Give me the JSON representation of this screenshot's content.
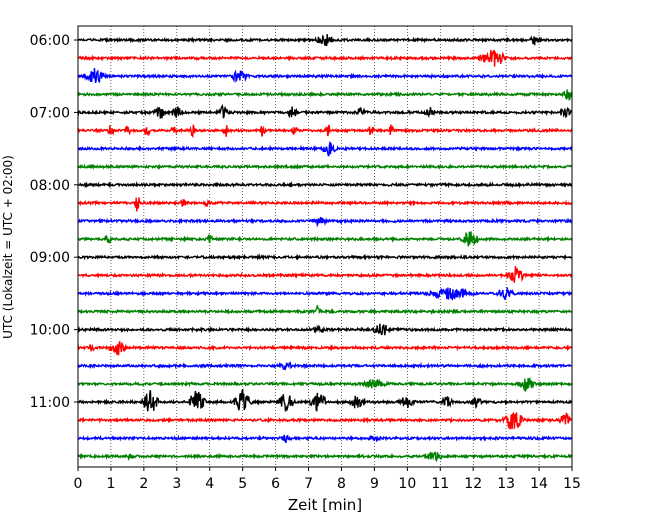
{
  "chart_data": {
    "type": "line",
    "xlabel": "Zeit  [min]",
    "ylabel": "UTC (Lokalzeit = UTC + 02:00)",
    "xlim": [
      0,
      15
    ],
    "x_ticks": [
      "0",
      "1",
      "2",
      "3",
      "4",
      "5",
      "6",
      "7",
      "8",
      "9",
      "10",
      "11",
      "12",
      "13",
      "14",
      "15"
    ],
    "x_grid": true,
    "y_ticks": [
      "06:00",
      "07:00",
      "08:00",
      "09:00",
      "10:00",
      "11:00"
    ],
    "trace_interval_minutes": 15,
    "colors": [
      "#000000",
      "#ff0000",
      "#0000ff",
      "#008000"
    ],
    "traces": [
      {
        "start": "06:00",
        "color": "#000000",
        "events": [
          [
            7.5,
            0.9,
            0.3
          ],
          [
            13.9,
            0.7,
            0.2
          ]
        ]
      },
      {
        "start": "06:15",
        "color": "#ff0000",
        "events": [
          [
            12.6,
            1.2,
            0.5
          ]
        ]
      },
      {
        "start": "06:30",
        "color": "#0000ff",
        "events": [
          [
            0.5,
            1.1,
            0.4
          ],
          [
            4.9,
            0.9,
            0.3
          ]
        ]
      },
      {
        "start": "06:45",
        "color": "#008000",
        "events": [
          [
            14.9,
            0.7,
            0.2
          ]
        ]
      },
      {
        "start": "07:00",
        "color": "#000000",
        "events": [
          [
            2.5,
            0.9,
            0.2
          ],
          [
            3.0,
            0.8,
            0.2
          ],
          [
            4.4,
            0.8,
            0.2
          ],
          [
            6.5,
            0.7,
            0.2
          ],
          [
            8.6,
            0.7,
            0.2
          ],
          [
            10.7,
            0.6,
            0.2
          ],
          [
            14.8,
            0.8,
            0.2
          ]
        ]
      },
      {
        "start": "07:15",
        "color": "#ff0000",
        "events": [
          [
            1.0,
            1.0,
            0.1
          ],
          [
            1.5,
            0.8,
            0.1
          ],
          [
            2.1,
            0.9,
            0.1
          ],
          [
            2.9,
            0.8,
            0.1
          ],
          [
            3.5,
            0.9,
            0.1
          ],
          [
            4.5,
            0.9,
            0.1
          ],
          [
            5.6,
            0.8,
            0.1
          ],
          [
            6.6,
            0.9,
            0.1
          ],
          [
            7.6,
            0.8,
            0.1
          ],
          [
            8.9,
            0.9,
            0.1
          ],
          [
            9.5,
            0.8,
            0.1
          ]
        ]
      },
      {
        "start": "07:30",
        "color": "#0000ff",
        "events": [
          [
            7.6,
            0.9,
            0.3
          ]
        ]
      },
      {
        "start": "07:45",
        "color": "#008000",
        "events": []
      },
      {
        "start": "08:00",
        "color": "#000000",
        "events": []
      },
      {
        "start": "08:15",
        "color": "#ff0000",
        "events": [
          [
            1.8,
            1.3,
            0.1
          ],
          [
            3.2,
            0.5,
            0.1
          ],
          [
            3.9,
            0.5,
            0.1
          ]
        ]
      },
      {
        "start": "08:30",
        "color": "#0000ff",
        "events": [
          [
            7.3,
            0.5,
            0.3
          ]
        ]
      },
      {
        "start": "08:45",
        "color": "#008000",
        "events": [
          [
            0.9,
            0.9,
            0.1
          ],
          [
            4.0,
            0.6,
            0.1
          ],
          [
            11.9,
            1.1,
            0.3
          ]
        ]
      },
      {
        "start": "09:00",
        "color": "#000000",
        "events": []
      },
      {
        "start": "09:15",
        "color": "#ff0000",
        "events": [
          [
            13.3,
            1.2,
            0.3
          ]
        ]
      },
      {
        "start": "09:30",
        "color": "#0000ff",
        "events": [
          [
            11.3,
            0.8,
            0.8
          ],
          [
            13.0,
            1.0,
            0.3
          ]
        ]
      },
      {
        "start": "09:45",
        "color": "#008000",
        "events": [
          [
            7.3,
            1.0,
            0.1
          ]
        ]
      },
      {
        "start": "10:00",
        "color": "#000000",
        "events": [
          [
            9.2,
            1.0,
            0.3
          ],
          [
            7.3,
            0.5,
            0.2
          ]
        ]
      },
      {
        "start": "10:15",
        "color": "#ff0000",
        "events": [
          [
            1.2,
            1.0,
            0.3
          ],
          [
            0.4,
            0.5,
            0.1
          ]
        ]
      },
      {
        "start": "10:30",
        "color": "#0000ff",
        "events": [
          [
            6.3,
            0.4,
            0.3
          ]
        ]
      },
      {
        "start": "10:45",
        "color": "#008000",
        "events": [
          [
            9.0,
            0.6,
            0.4
          ],
          [
            13.6,
            0.9,
            0.3
          ]
        ]
      },
      {
        "start": "11:00",
        "color": "#000000",
        "events": [
          [
            2.2,
            1.6,
            0.3
          ],
          [
            3.6,
            1.6,
            0.3
          ],
          [
            5.0,
            1.6,
            0.3
          ],
          [
            6.3,
            1.6,
            0.3
          ],
          [
            7.3,
            1.4,
            0.3
          ],
          [
            8.5,
            1.0,
            0.3
          ],
          [
            10.0,
            0.8,
            0.3
          ],
          [
            11.2,
            0.7,
            0.2
          ],
          [
            12.1,
            0.6,
            0.2
          ]
        ]
      },
      {
        "start": "11:15",
        "color": "#ff0000",
        "events": [
          [
            13.2,
            1.3,
            0.4
          ],
          [
            14.8,
            1.0,
            0.2
          ]
        ]
      },
      {
        "start": "11:30",
        "color": "#0000ff",
        "events": [
          [
            6.3,
            0.5,
            0.2
          ],
          [
            9.0,
            0.4,
            0.2
          ]
        ]
      },
      {
        "start": "11:45",
        "color": "#008000",
        "events": [
          [
            1.6,
            0.6,
            0.1
          ],
          [
            10.8,
            0.7,
            0.3
          ]
        ]
      }
    ]
  }
}
